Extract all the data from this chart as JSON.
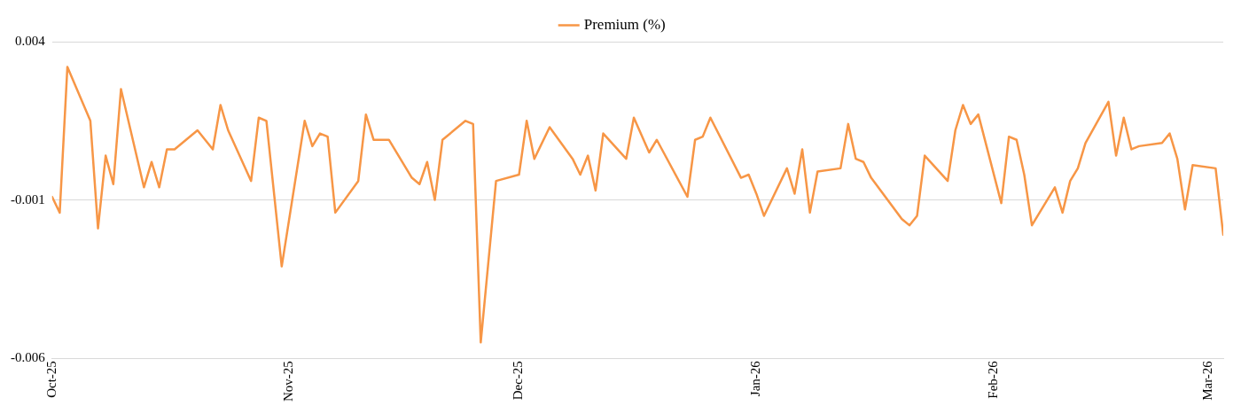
{
  "chart_data": {
    "type": "line",
    "x": [
      "2025-10-01",
      "2025-10-02",
      "2025-10-03",
      "2025-10-06",
      "2025-10-07",
      "2025-10-08",
      "2025-10-09",
      "2025-10-10",
      "2025-10-13",
      "2025-10-14",
      "2025-10-15",
      "2025-10-16",
      "2025-10-17",
      "2025-10-20",
      "2025-10-21",
      "2025-10-22",
      "2025-10-23",
      "2025-10-24",
      "2025-10-27",
      "2025-10-28",
      "2025-10-29",
      "2025-10-31",
      "2025-11-03",
      "2025-11-04",
      "2025-11-05",
      "2025-11-06",
      "2025-11-07",
      "2025-11-10",
      "2025-11-11",
      "2025-11-12",
      "2025-11-13",
      "2025-11-14",
      "2025-11-17",
      "2025-11-18",
      "2025-11-19",
      "2025-11-20",
      "2025-11-21",
      "2025-11-24",
      "2025-11-25",
      "2025-11-26",
      "2025-11-28",
      "2025-12-01",
      "2025-12-02",
      "2025-12-03",
      "2025-12-05",
      "2025-12-08",
      "2025-12-09",
      "2025-12-10",
      "2025-12-11",
      "2025-12-12",
      "2025-12-15",
      "2025-12-16",
      "2025-12-18",
      "2025-12-19",
      "2025-12-23",
      "2025-12-24",
      "2025-12-25",
      "2025-12-26",
      "2025-12-30",
      "2025-12-31",
      "2026-01-01",
      "2026-01-02",
      "2026-01-05",
      "2026-01-06",
      "2026-01-07",
      "2026-01-08",
      "2026-01-09",
      "2026-01-12",
      "2026-01-13",
      "2026-01-14",
      "2026-01-15",
      "2026-01-16",
      "2026-01-20",
      "2026-01-21",
      "2026-01-22",
      "2026-01-23",
      "2026-01-26",
      "2026-01-27",
      "2026-01-28",
      "2026-01-29",
      "2026-01-30",
      "2026-02-02",
      "2026-02-03",
      "2026-02-04",
      "2026-02-05",
      "2026-02-06",
      "2026-02-09",
      "2026-02-10",
      "2026-02-11",
      "2026-02-12",
      "2026-02-13",
      "2026-02-16",
      "2026-02-17",
      "2026-02-18",
      "2026-02-19",
      "2026-02-20",
      "2026-02-23",
      "2026-02-24",
      "2026-02-25",
      "2026-02-26",
      "2026-02-27",
      "2026-03-02",
      "2026-03-03"
    ],
    "series": [
      {
        "name": "Premium (%)",
        "color": "#f79646",
        "values": [
          -0.0009,
          -0.0014,
          0.0032,
          0.0015,
          -0.0019,
          0.0004,
          -0.0005,
          0.0025,
          -0.0006,
          0.0002,
          -0.0006,
          0.0006,
          0.0006,
          0.0012,
          0.0009,
          0.0006,
          0.002,
          0.0012,
          -0.0004,
          0.0016,
          0.0015,
          -0.0031,
          0.0015,
          0.0007,
          0.0011,
          0.001,
          -0.0014,
          -0.0004,
          0.0017,
          0.0009,
          0.0009,
          0.0009,
          -0.0003,
          -0.0005,
          0.0002,
          -0.001,
          0.0009,
          0.0015,
          0.0014,
          -0.0055,
          -0.0004,
          -0.0002,
          0.0015,
          0.0003,
          0.0013,
          0.0003,
          -0.0002,
          0.0004,
          -0.0007,
          0.0011,
          0.0003,
          0.0016,
          0.0005,
          0.0009,
          -0.0009,
          0.0009,
          0.001,
          0.0016,
          -0.0003,
          -0.0002,
          -0.0008,
          -0.0015,
          0.0,
          -0.0008,
          0.0006,
          -0.0014,
          -0.0001,
          0.0,
          0.0014,
          0.0003,
          0.0002,
          -0.0003,
          -0.0016,
          -0.0018,
          -0.0015,
          0.0004,
          -0.0004,
          0.0012,
          0.002,
          0.0014,
          0.0017,
          -0.0011,
          0.001,
          0.0009,
          -0.0002,
          -0.0018,
          -0.0006,
          -0.0014,
          -0.0004,
          0.0,
          0.0008,
          0.0021,
          0.0004,
          0.0016,
          0.0006,
          0.0007,
          0.0008,
          0.0011,
          0.0003,
          -0.0013,
          0.0001,
          0.0,
          -0.0021
        ]
      }
    ],
    "xlim": [
      "2025-10-01",
      "2026-03-03"
    ],
    "xticks": [
      {
        "value": "2025-10-01",
        "label": "Oct-25"
      },
      {
        "value": "2025-11-01",
        "label": "Nov-25"
      },
      {
        "value": "2025-12-01",
        "label": "Dec-25"
      },
      {
        "value": "2026-01-01",
        "label": "Jan-26"
      },
      {
        "value": "2026-02-01",
        "label": "Feb-26"
      },
      {
        "value": "2026-03-01",
        "label": "Mar-26"
      }
    ],
    "ylim": [
      -0.006,
      0.004
    ],
    "yticks": [
      -0.006,
      -0.001,
      0.004
    ],
    "grid": "y",
    "legend": "top",
    "marker": "none",
    "line_style": "solid"
  }
}
